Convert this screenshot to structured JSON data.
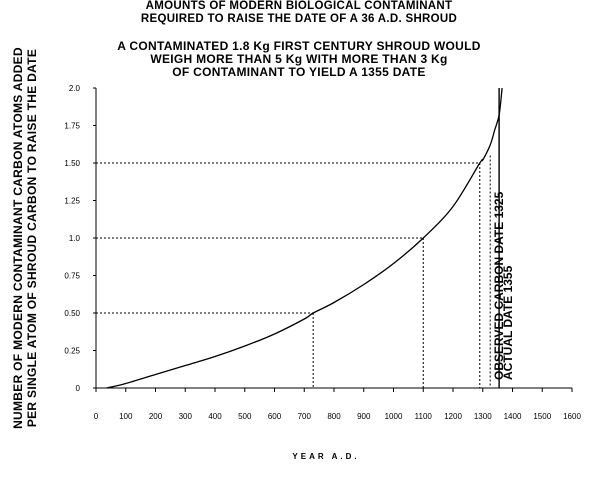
{
  "chart_data": {
    "type": "line",
    "title": [
      "AMOUNTS OF MODERN BIOLOGICAL CONTAMINANT",
      "REQUIRED TO RAISE THE DATE OF A 36 A.D. SHROUD"
    ],
    "subtitle": [
      "A CONTAMINATED 1.8 Kg FIRST CENTURY SHROUD WOULD",
      "WEIGH MORE THAN 5 Kg WITH MORE THAN 3 Kg",
      "OF CONTAMINANT TO YIELD A 1355 DATE"
    ],
    "xlabel": "YEAR A.D.",
    "ylabel": [
      "NUMBER OF MODERN CONTAMINANT CARBON ATOMS ADDED",
      "PER SINGLE ATOM OF SHROUD CARBON TO RAISE THE DATE"
    ],
    "xlim": [
      0,
      1600
    ],
    "ylim": [
      0,
      2.0
    ],
    "x_ticks": [
      "0",
      "100",
      "200",
      "300",
      "400",
      "500",
      "600",
      "700",
      "800",
      "900",
      "1000",
      "1100",
      "1200",
      "1300",
      "1400",
      "1500",
      "1600"
    ],
    "y_ticks": [
      "0",
      "0.25",
      "0.50",
      "0.75",
      "1.0",
      "1.25",
      "1.50",
      "1.75",
      "2.0"
    ],
    "grid": false,
    "series": [
      {
        "x": [
          36,
          100,
          200,
          300,
          400,
          500,
          600,
          700,
          730,
          800,
          900,
          1000,
          1100,
          1200,
          1290,
          1300,
          1325,
          1340,
          1355,
          1365
        ],
        "values": [
          0,
          0.03,
          0.09,
          0.15,
          0.21,
          0.28,
          0.36,
          0.46,
          0.5,
          0.57,
          0.69,
          0.83,
          1.0,
          1.21,
          1.5,
          1.52,
          1.62,
          1.72,
          1.82,
          2.0
        ]
      }
    ],
    "reference_lines": [
      {
        "y": 0.5,
        "x": 730
      },
      {
        "y": 1.0,
        "x": 1100
      },
      {
        "y": 1.5,
        "x": 1290
      }
    ],
    "annotations": [
      {
        "text": "OBSERVED CARBON DATE 1325",
        "x": 1325,
        "style": "dotted"
      },
      {
        "text": "ACTUAL DATE 1355",
        "x": 1355,
        "style": "solid"
      }
    ]
  }
}
